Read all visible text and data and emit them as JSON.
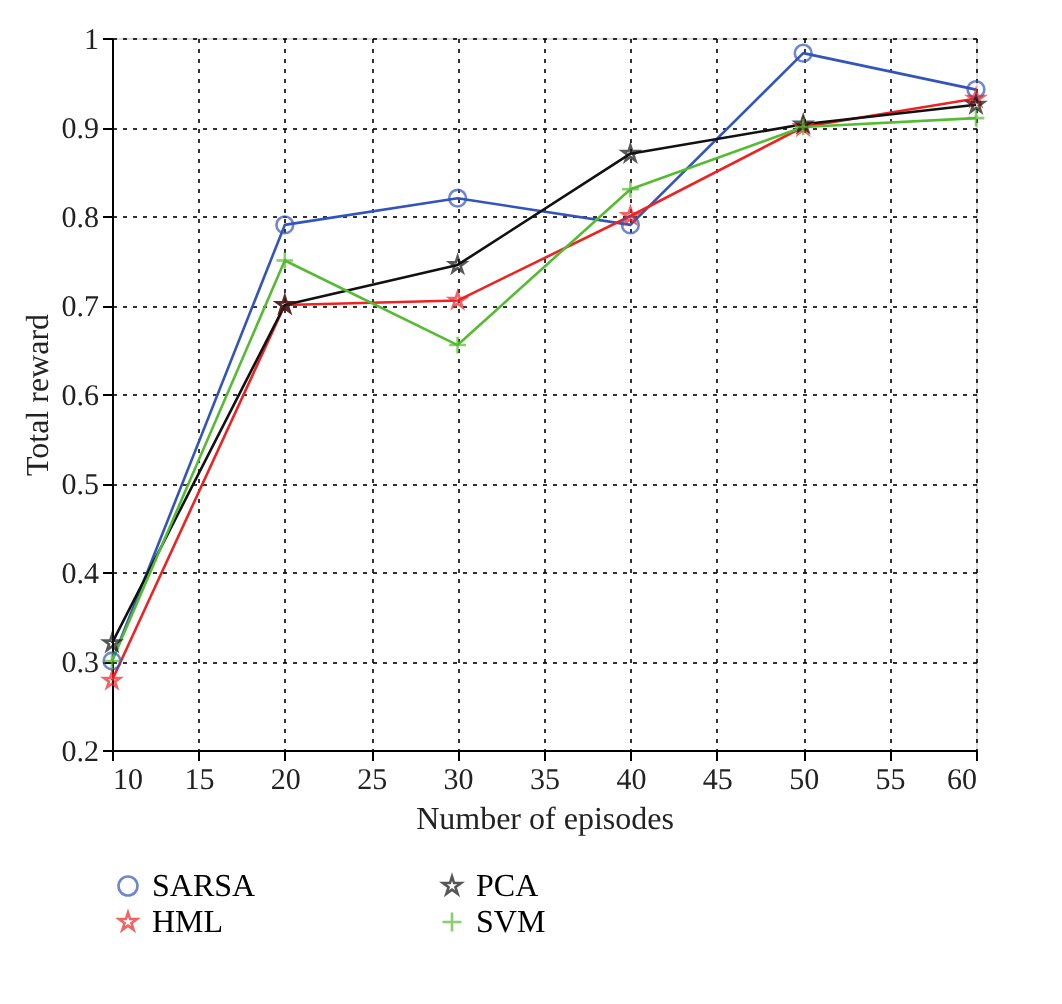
{
  "chart_data": {
    "type": "line",
    "xlabel": "Number of episodes",
    "ylabel": "Total reward",
    "x": [
      10,
      20,
      30,
      40,
      50,
      60
    ],
    "xlim": [
      10,
      60
    ],
    "xticks": [
      10,
      15,
      20,
      25,
      30,
      35,
      40,
      45,
      50,
      55,
      60
    ],
    "ylim": [
      0.2,
      1
    ],
    "yticks": [
      0.2,
      0.3,
      0.4,
      0.5,
      0.6,
      0.7,
      0.8,
      0.9,
      {
        "value": 1,
        "label": "1"
      }
    ],
    "grid": true,
    "legend": "bottom",
    "line_style": "solid",
    "series": [
      {
        "name": "SARSA",
        "color": "#3355bb",
        "marker": "circle",
        "values": [
          0.3,
          0.79,
          0.82,
          0.79,
          0.983,
          0.942
        ]
      },
      {
        "name": "HML",
        "color": "#ee2222",
        "marker": "star",
        "values": [
          0.278,
          0.7,
          0.705,
          0.8,
          0.9,
          0.932
        ]
      },
      {
        "name": "PCA",
        "color": "#111111",
        "marker": "star",
        "values": [
          0.32,
          0.7,
          0.745,
          0.87,
          0.903,
          0.925
        ]
      },
      {
        "name": "SVM",
        "color": "#55bb33",
        "marker": "cross",
        "values": [
          0.3,
          0.75,
          0.655,
          0.83,
          0.9,
          0.91
        ]
      }
    ]
  }
}
